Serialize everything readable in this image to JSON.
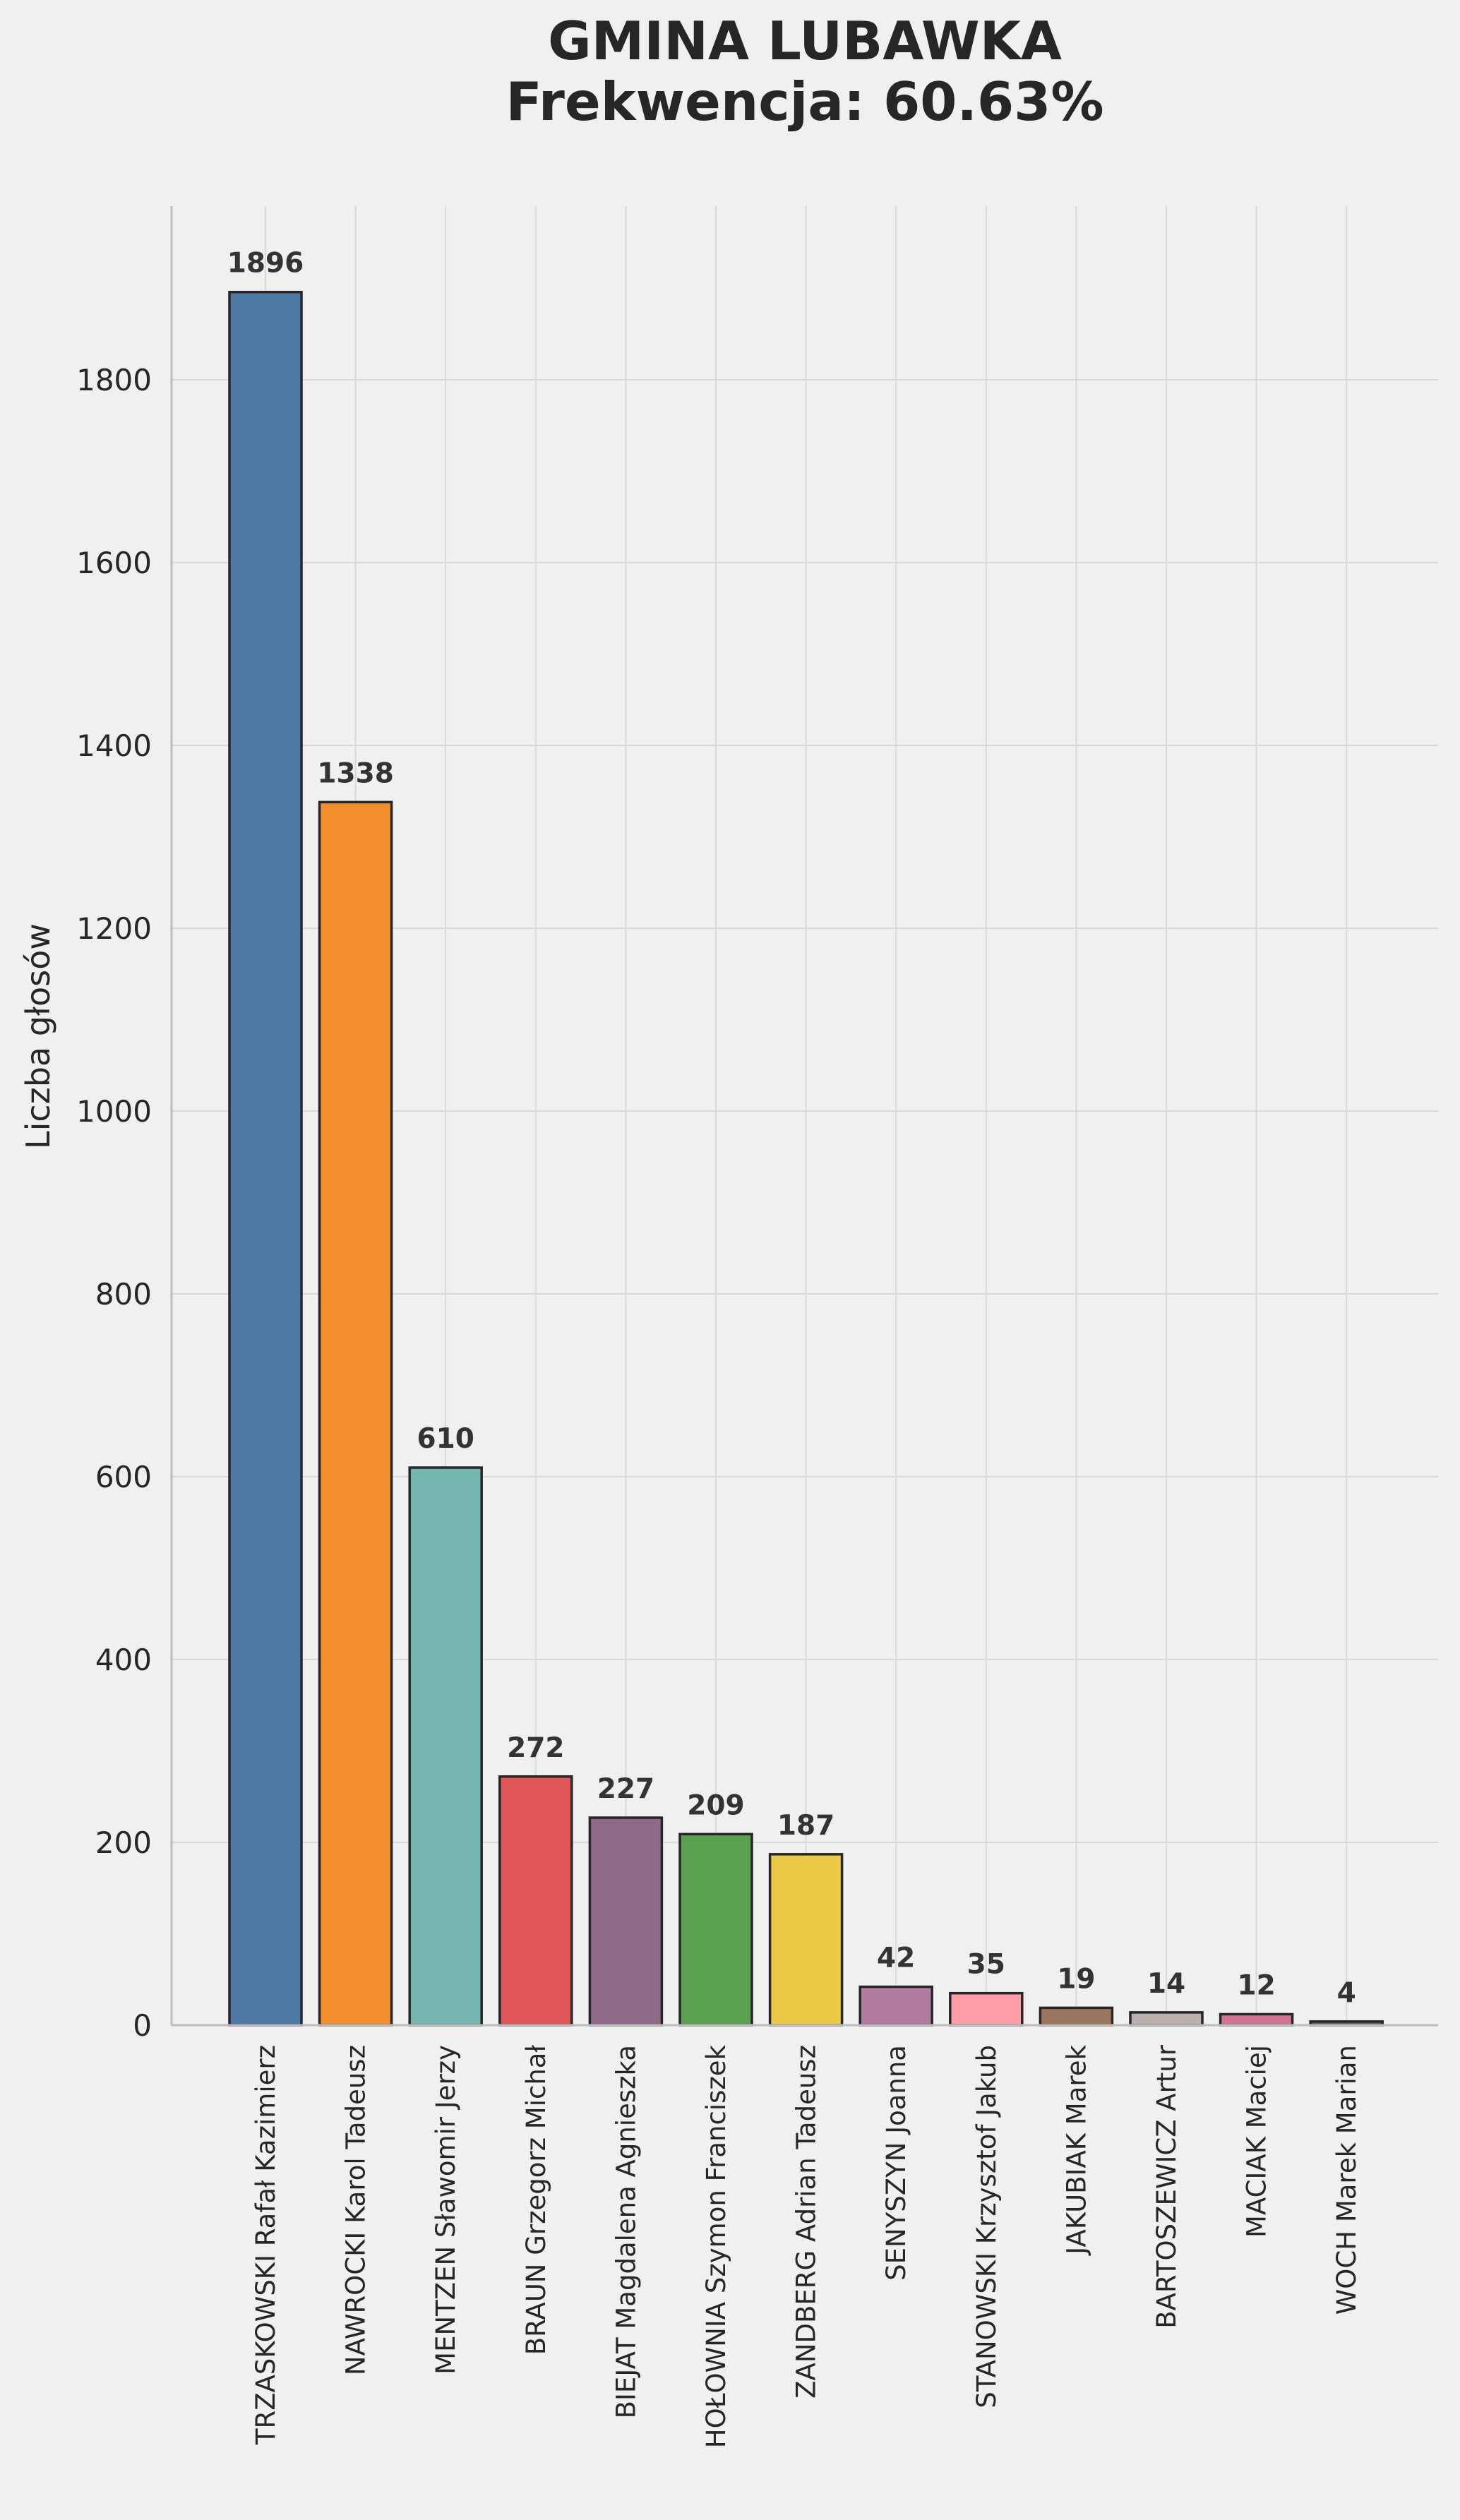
{
  "chart_data": {
    "type": "bar",
    "title": "GMINA LUBAWKA",
    "subtitle": "Frekwencja: 60.63%",
    "xlabel": "",
    "ylabel": "Liczba głosów",
    "ylim": [
      0,
      1990
    ],
    "yticks": [
      0,
      200,
      400,
      600,
      800,
      1000,
      1200,
      1400,
      1600,
      1800
    ],
    "grid": true,
    "legend": "none",
    "categories": [
      "TRZASKOWSKI Rafał Kazimierz",
      "NAWROCKI Karol Tadeusz",
      "MENTZEN Sławomir Jerzy",
      "BRAUN Grzegorz Michał",
      "BIEJAT Magdalena Agnieszka",
      "HOŁOWNIA Szymon Franciszek",
      "ZANDBERG Adrian Tadeusz",
      "SENYSZYN Joanna",
      "STANOWSKI Krzysztof Jakub",
      "JAKUBIAK Marek",
      "BARTOSZEWICZ Artur",
      "MACIAK Maciej",
      "WOCH Marek Marian"
    ],
    "values": [
      1896,
      1338,
      610,
      272,
      227,
      209,
      187,
      42,
      35,
      19,
      14,
      12,
      4
    ],
    "colors": [
      "#4e79a7",
      "#f28e2b",
      "#76b7b2",
      "#e15759",
      "#8f6a88",
      "#59a14f",
      "#edc948",
      "#b07aa1",
      "#ff9da7",
      "#9c755f",
      "#bab0ac",
      "#d37295",
      "#606060"
    ],
    "bar_edge_color": "#262626",
    "background_color": "#f0f0f0",
    "grid_color": "#d9d9d9"
  }
}
